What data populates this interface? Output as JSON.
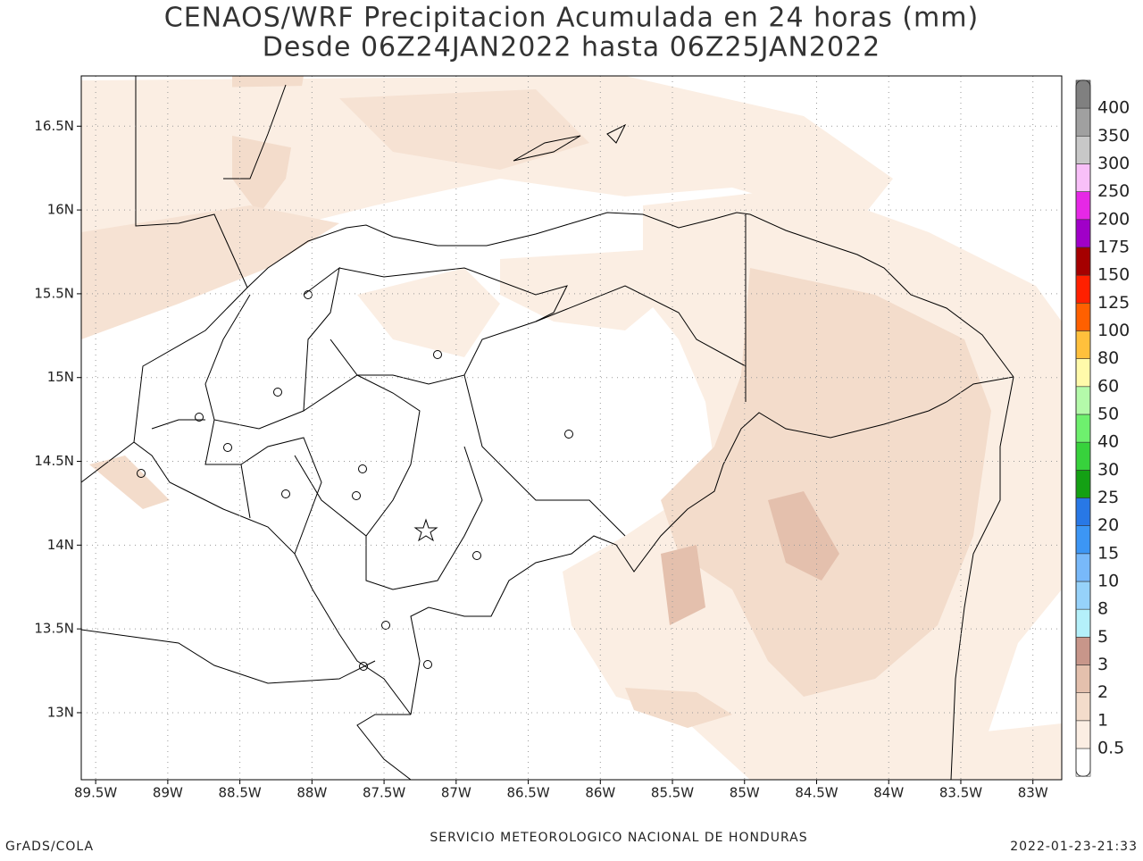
{
  "title": [
    "CENAOS/WRF Precipitacion Acumulada en 24 horas (mm)",
    "Desde 06Z24JAN2022 hasta 06Z25JAN2022"
  ],
  "map": {
    "lonlim": [
      -89.6,
      -82.8
    ],
    "latlim": [
      12.6,
      16.8
    ],
    "grid": true,
    "lon_ticks": [
      {
        "value": -89.5,
        "label": "89.5W"
      },
      {
        "value": -89,
        "label": "89W"
      },
      {
        "value": -88.5,
        "label": "88.5W"
      },
      {
        "value": -88,
        "label": "88W"
      },
      {
        "value": -87.5,
        "label": "87.5W"
      },
      {
        "value": -87,
        "label": "87W"
      },
      {
        "value": -86.5,
        "label": "86.5W"
      },
      {
        "value": -86,
        "label": "86W"
      },
      {
        "value": -85.5,
        "label": "85.5W"
      },
      {
        "value": -85,
        "label": "85W"
      },
      {
        "value": -84.5,
        "label": "84.5W"
      },
      {
        "value": -84,
        "label": "84W"
      },
      {
        "value": -83.5,
        "label": "83.5W"
      },
      {
        "value": -83,
        "label": "83W"
      }
    ],
    "lat_ticks": [
      {
        "value": 13,
        "label": "13N"
      },
      {
        "value": 13.5,
        "label": "13.5N"
      },
      {
        "value": 14,
        "label": "14N"
      },
      {
        "value": 14.5,
        "label": "14.5N"
      },
      {
        "value": 15,
        "label": "15N"
      },
      {
        "value": 15.5,
        "label": "15.5N"
      },
      {
        "value": 16,
        "label": "16N"
      },
      {
        "value": 16.5,
        "label": "16.5N"
      }
    ]
  },
  "colorbar": {
    "levels": [
      0.5,
      1,
      2,
      3,
      5,
      8,
      10,
      15,
      20,
      25,
      30,
      40,
      50,
      60,
      80,
      100,
      125,
      150,
      175,
      200,
      250,
      300,
      350,
      400
    ],
    "colors": [
      "#ffffff",
      "#fbeee3",
      "#f3dccb",
      "#e4c0ad",
      "#c8968a",
      "#b4f0fa",
      "#96d2fa",
      "#78b9fa",
      "#3c96f5",
      "#2878e6",
      "#14a014",
      "#37d23c",
      "#6ef06e",
      "#b4faaa",
      "#fffaaa",
      "#ffc03c",
      "#ff6000",
      "#ff2000",
      "#a50000",
      "#a000c8",
      "#e628e6",
      "#f8bff8",
      "#c8c8c8",
      "#a0a0a0",
      "#808080"
    ]
  },
  "footer": {
    "left": "GrADS/COLA",
    "center": "SERVICIO METEOROLOGICO NACIONAL DE HONDURAS",
    "right": "2022-01-23-21:33"
  }
}
